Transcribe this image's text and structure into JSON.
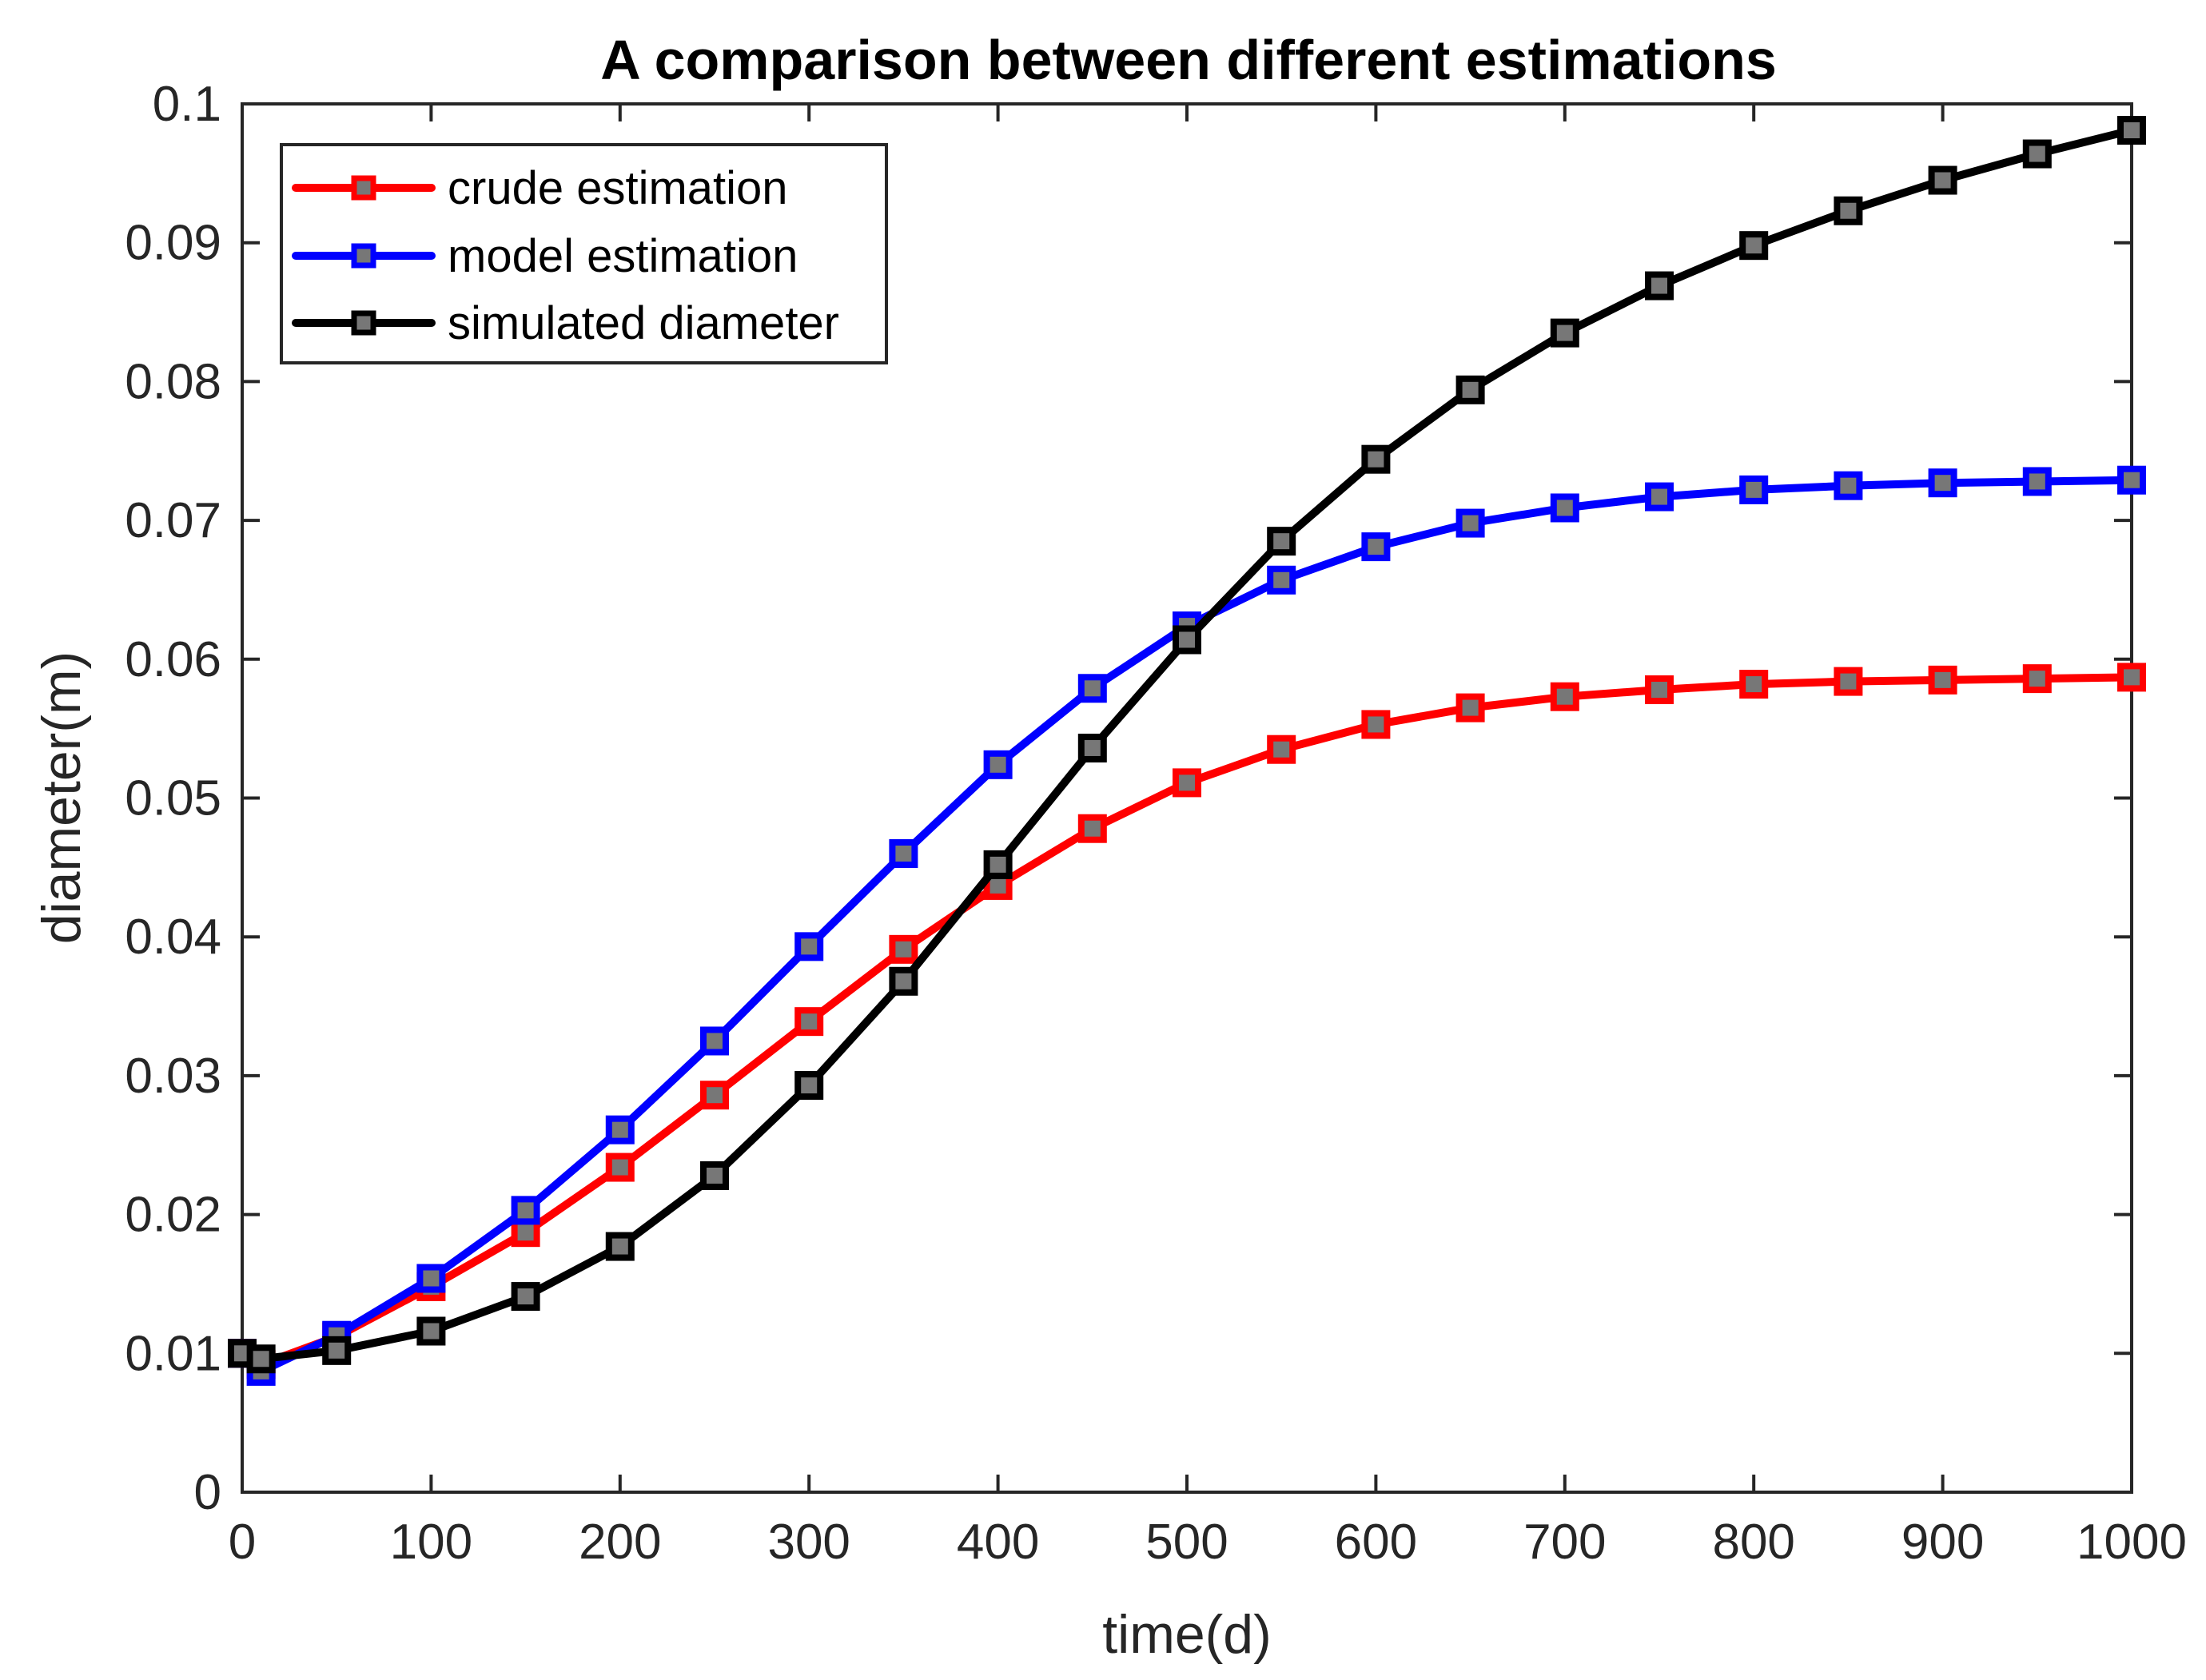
{
  "chart_data": {
    "type": "line",
    "title": "A comparison between different estimations",
    "xlabel": "time(d)",
    "ylabel": "diameter(m)",
    "xlim": [
      0,
      1000
    ],
    "ylim": [
      0,
      0.1
    ],
    "xticks": [
      0,
      100,
      200,
      300,
      400,
      500,
      600,
      700,
      800,
      900,
      1000
    ],
    "xtick_labels": [
      "0",
      "100",
      "200",
      "300",
      "400",
      "500",
      "600",
      "700",
      "800",
      "900",
      "1000"
    ],
    "yticks": [
      0,
      0.01,
      0.02,
      0.03,
      0.04,
      0.05,
      0.06,
      0.07,
      0.08,
      0.09,
      0.1
    ],
    "ytick_labels": [
      "0",
      "0.01",
      "0.02",
      "0.03",
      "0.04",
      "0.05",
      "0.06",
      "0.07",
      "0.08",
      "0.09",
      "0.1"
    ],
    "grid": false,
    "legend_position": "top-left",
    "x": [
      0,
      10,
      50,
      100,
      150,
      200,
      250,
      300,
      350,
      400,
      450,
      500,
      550,
      600,
      650,
      700,
      750,
      800,
      850,
      900,
      950,
      1000
    ],
    "series": [
      {
        "name": "crude estimation",
        "color": "#ff0000",
        "marker": "square",
        "values": [
          0.01,
          0.0092,
          0.0112,
          0.0148,
          0.0187,
          0.0234,
          0.0286,
          0.0339,
          0.0391,
          0.0437,
          0.0478,
          0.0511,
          0.0535,
          0.0553,
          0.0565,
          0.0573,
          0.0578,
          0.0582,
          0.0584,
          0.0585,
          0.0586,
          0.0587
        ]
      },
      {
        "name": "model estimation",
        "color": "#0000ff",
        "marker": "square",
        "values": [
          0.01,
          0.0087,
          0.0113,
          0.0154,
          0.0203,
          0.0261,
          0.0325,
          0.0393,
          0.046,
          0.0524,
          0.0579,
          0.0624,
          0.0657,
          0.0681,
          0.0698,
          0.0709,
          0.0717,
          0.0722,
          0.0725,
          0.0727,
          0.0728,
          0.0729
        ]
      },
      {
        "name": "simulated diameter",
        "color": "#000000",
        "marker": "square",
        "values": [
          0.01,
          0.0096,
          0.0102,
          0.0116,
          0.0141,
          0.0177,
          0.0228,
          0.0293,
          0.0368,
          0.0452,
          0.0536,
          0.0614,
          0.0685,
          0.0744,
          0.0794,
          0.0835,
          0.0869,
          0.0898,
          0.0923,
          0.0945,
          0.0964,
          0.0981
        ]
      }
    ]
  }
}
